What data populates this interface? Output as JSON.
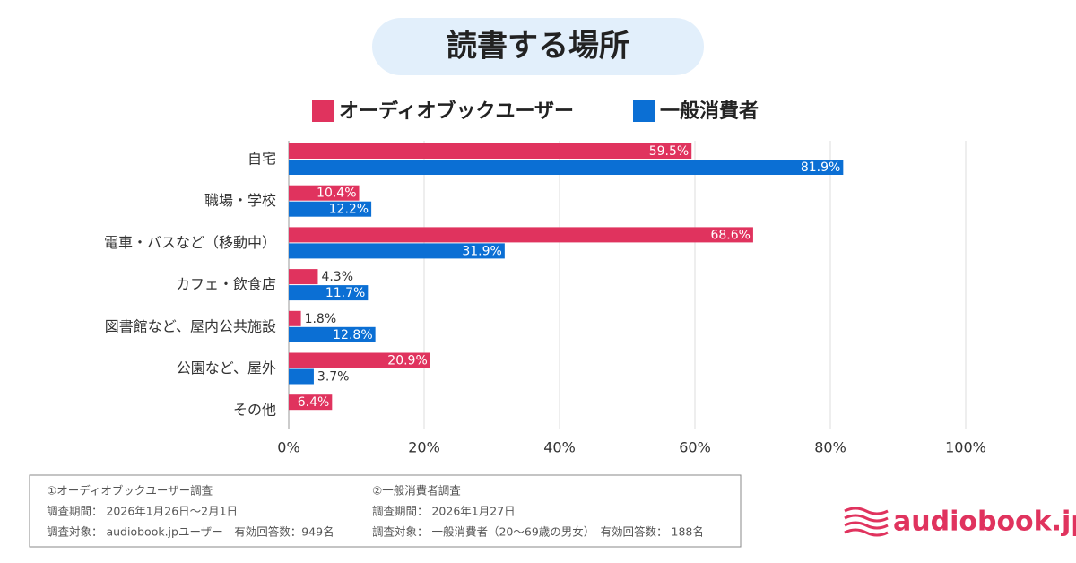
{
  "chart_data": {
    "type": "hbar",
    "title": "読書する場所",
    "categories": [
      "自宅",
      "職場・学校",
      "電車・バスなど（移動中）",
      "カフェ・飲食店",
      "図書館など、屋内公共施設",
      "公園など、屋外",
      "その他"
    ],
    "series": [
      {
        "name": "オーディオブックユーザー",
        "color": "#e0335e",
        "values": [
          59.5,
          10.4,
          68.6,
          4.3,
          1.8,
          20.9,
          6.4
        ],
        "value_labels": [
          "59.5%",
          "10.4%",
          "68.6%",
          "4.3%",
          "1.8%",
          "20.9%",
          "6.4%"
        ]
      },
      {
        "name": "一般消費者",
        "color": "#0b6fd4",
        "values": [
          81.9,
          12.2,
          31.9,
          11.7,
          12.8,
          3.7,
          null
        ],
        "value_labels": [
          "81.9%",
          "12.2%",
          "31.9%",
          "11.7%",
          "12.8%",
          "3.7%",
          null
        ]
      }
    ],
    "xlim": [
      0,
      100
    ],
    "xticks": [
      {
        "value": 0,
        "label": "0%"
      },
      {
        "value": 20,
        "label": "20%"
      },
      {
        "value": 40,
        "label": "40%"
      },
      {
        "value": 60,
        "label": "60%"
      },
      {
        "value": 80,
        "label": "80%"
      },
      {
        "value": 100,
        "label": "100%"
      }
    ],
    "grid": true
  },
  "notes": {
    "left": [
      "①オーディオブックユーザー調査",
      "調査期間： 2026年1月26日〜2月1日",
      "調査対象： audiobook.jpユーザー　有効回答数：949名"
    ],
    "right": [
      "②一般消費者調査",
      "調査期間： 2026年1月27日",
      "調査対象： 一般消費者（20〜69歳の男女）　有効回答数： 188名"
    ]
  },
  "logo": "audiobook.jp"
}
